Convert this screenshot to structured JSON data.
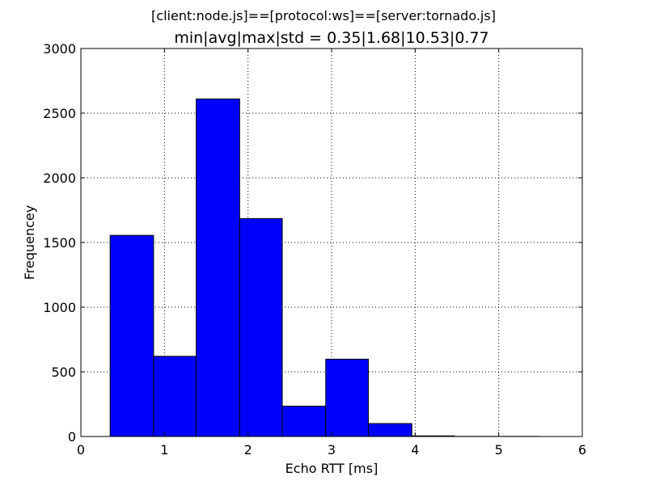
{
  "chart_data": {
    "type": "bar",
    "suptitle": "[client:node.js]==[protocol:ws]==[server:tornado.js]",
    "title": "min|avg|max|std = 0.35|1.68|10.53|0.77",
    "xlabel": "Echo RTT [ms]",
    "ylabel": "Frequencey",
    "xlim": [
      0,
      6
    ],
    "ylim": [
      0,
      3000
    ],
    "xticks": [
      0,
      1,
      2,
      3,
      4,
      5,
      6
    ],
    "yticks": [
      0,
      500,
      1000,
      1500,
      2000,
      2500,
      3000
    ],
    "grid": true,
    "bins": [
      {
        "x0": 0.35,
        "x1": 0.87,
        "value": 1555
      },
      {
        "x0": 0.87,
        "x1": 1.38,
        "value": 620
      },
      {
        "x0": 1.38,
        "x1": 1.9,
        "value": 2610
      },
      {
        "x0": 1.9,
        "x1": 2.41,
        "value": 1685
      },
      {
        "x0": 2.41,
        "x1": 2.93,
        "value": 235
      },
      {
        "x0": 2.93,
        "x1": 3.44,
        "value": 598
      },
      {
        "x0": 3.44,
        "x1": 3.96,
        "value": 100
      },
      {
        "x0": 3.96,
        "x1": 4.47,
        "value": 5
      },
      {
        "x0": 4.47,
        "x1": 4.99,
        "value": 1
      },
      {
        "x0": 4.99,
        "x1": 5.5,
        "value": 1
      }
    ],
    "bar_color": "#0000ff",
    "edge_color": "#000000"
  }
}
